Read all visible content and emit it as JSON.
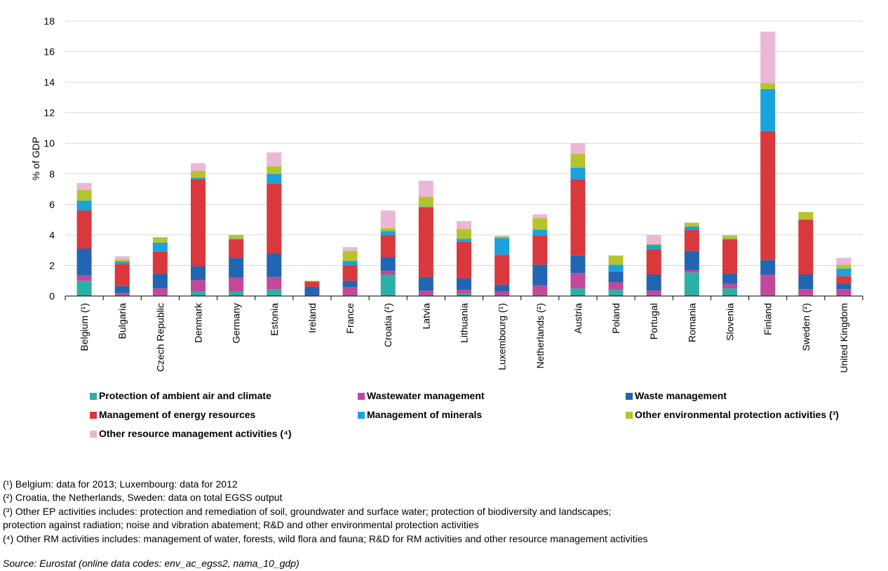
{
  "chart_data": {
    "type": "bar",
    "stacked": true,
    "ylabel": "% of GDP",
    "ylim": [
      0,
      18
    ],
    "yticks": [
      0,
      2,
      4,
      6,
      8,
      10,
      12,
      14,
      16,
      18
    ],
    "grid": true,
    "legend_position": "bottom",
    "categories": [
      "Belgium (¹)",
      "Bulgaria",
      "Czech Republic",
      "Denmark",
      "Germany",
      "Estonia",
      "Ireland",
      "France",
      "Croatia (²)",
      "Latvia",
      "Lithuania",
      "Luxembourg (¹)",
      "Netherlands (²)",
      "Austria",
      "Poland",
      "Portugal",
      "Romania",
      "Slovenia",
      "Finland",
      "Sweden (²)",
      "United Kingdom"
    ],
    "series": [
      {
        "name": "Protection of ambient air and climate",
        "color": "#2ab0a4",
        "values": [
          1.0,
          0.05,
          0.05,
          0.3,
          0.3,
          0.45,
          0.0,
          0.05,
          1.4,
          0.05,
          0.15,
          0.05,
          0.05,
          0.5,
          0.4,
          0.05,
          1.55,
          0.5,
          0.05,
          0.05,
          0.05
        ]
      },
      {
        "name": "Wastewater management",
        "color": "#c4479a",
        "values": [
          0.35,
          0.15,
          0.45,
          0.75,
          0.9,
          0.8,
          0.05,
          0.55,
          0.25,
          0.3,
          0.25,
          0.25,
          0.65,
          1.0,
          0.5,
          0.3,
          0.15,
          0.3,
          1.35,
          0.4,
          0.4
        ]
      },
      {
        "name": "Waste management",
        "color": "#2166b2",
        "values": [
          1.75,
          0.45,
          0.95,
          0.9,
          1.3,
          1.55,
          0.55,
          0.4,
          0.9,
          0.9,
          0.75,
          0.45,
          1.35,
          1.15,
          0.7,
          1.05,
          1.25,
          0.65,
          0.95,
          0.95,
          0.35
        ]
      },
      {
        "name": "Management of energy resources",
        "color": "#d9383c",
        "values": [
          2.5,
          1.45,
          1.45,
          5.7,
          1.2,
          4.55,
          0.35,
          1.0,
          1.45,
          4.55,
          2.4,
          1.95,
          1.9,
          5.0,
          0.0,
          1.65,
          1.4,
          2.25,
          8.45,
          3.6,
          0.5
        ]
      },
      {
        "name": "Management of minerals",
        "color": "#1aa2dc",
        "values": [
          0.65,
          0.15,
          0.6,
          0.1,
          0.05,
          0.65,
          0.0,
          0.3,
          0.25,
          0.05,
          0.2,
          1.1,
          0.4,
          0.75,
          0.45,
          0.3,
          0.2,
          0.05,
          2.75,
          0.0,
          0.5
        ]
      },
      {
        "name": "Other environmental protection activities (³)",
        "color": "#b5c42c",
        "values": [
          0.7,
          0.15,
          0.35,
          0.45,
          0.25,
          0.5,
          0.05,
          0.65,
          0.2,
          0.65,
          0.65,
          0.1,
          0.75,
          0.9,
          0.6,
          0.05,
          0.25,
          0.2,
          0.4,
          0.5,
          0.25
        ]
      },
      {
        "name": "Other resource management activities (⁴)",
        "color": "#ebb7d6",
        "values": [
          0.45,
          0.2,
          0.0,
          0.5,
          0.0,
          0.9,
          0.0,
          0.25,
          1.15,
          1.05,
          0.5,
          0.05,
          0.25,
          0.7,
          0.0,
          0.6,
          0.0,
          0.05,
          3.35,
          0.0,
          0.45
        ]
      }
    ]
  },
  "footnotes": [
    "(¹) Belgium: data for 2013; Luxembourg: data for 2012",
    "(²) Croatia, the Netherlands, Sweden: data on total EGSS output",
    "(³) Other EP activities includes: protection and remediation of soil, groundwater and surface water; protection of biodiversity and landscapes;",
    "protection against radiation; noise and vibration abatement; R&D and other environmental protection activities",
    "(⁴) Other RM activities includes: management of water, forests, wild flora and fauna; R&D for RM activities and other resource management activities"
  ],
  "source": "Source: Eurostat (online data codes: env_ac_egss2, nama_10_gdp)"
}
